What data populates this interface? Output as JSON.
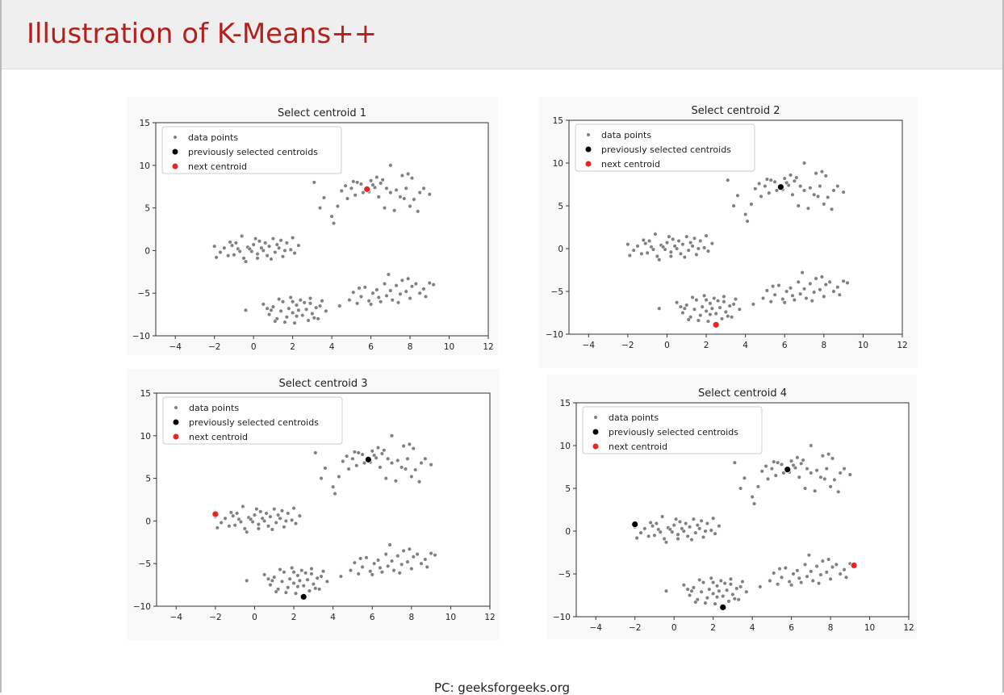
{
  "slide": {
    "title": "Illustration of K-Means++",
    "footer": "PC: geeksforgeeks.org"
  },
  "colors": {
    "title": "#b2211e",
    "data_points": "#808080",
    "previous_centroids": "#000000",
    "next_centroid": "#e8251f"
  },
  "chart_data": [
    {
      "type": "scatter",
      "title": "Select centroid 1",
      "xlim": [
        -5,
        12
      ],
      "ylim": [
        -10,
        15
      ],
      "xticks": [
        -4,
        -2,
        0,
        2,
        4,
        6,
        8,
        10,
        12
      ],
      "yticks": [
        -10,
        -5,
        0,
        5,
        10,
        15
      ],
      "legend": {
        "location": "upper-left",
        "entries": [
          "data points",
          "previously selected centroids",
          "next centroid"
        ]
      },
      "previous_centroids": [],
      "next_centroid": [
        5.8,
        7.2
      ]
    },
    {
      "type": "scatter",
      "title": "Select centroid 2",
      "xlim": [
        -5,
        12
      ],
      "ylim": [
        -10,
        15
      ],
      "xticks": [
        -4,
        -2,
        0,
        2,
        4,
        6,
        8,
        10,
        12
      ],
      "yticks": [
        -10,
        -5,
        0,
        5,
        10,
        15
      ],
      "legend": {
        "location": "upper-left",
        "entries": [
          "data points",
          "previously selected centroids",
          "next centroid"
        ]
      },
      "previous_centroids": [
        [
          5.8,
          7.2
        ]
      ],
      "next_centroid": [
        2.5,
        -8.9
      ]
    },
    {
      "type": "scatter",
      "title": "Select centroid 3",
      "xlim": [
        -5,
        12
      ],
      "ylim": [
        -10,
        15
      ],
      "xticks": [
        -4,
        -2,
        0,
        2,
        4,
        6,
        8,
        10,
        12
      ],
      "yticks": [
        -10,
        -5,
        0,
        5,
        10,
        15
      ],
      "legend": {
        "location": "upper-left",
        "entries": [
          "data points",
          "previously selected centroids",
          "next centroid"
        ]
      },
      "previous_centroids": [
        [
          5.8,
          7.2
        ],
        [
          2.5,
          -8.9
        ]
      ],
      "next_centroid": [
        -2.0,
        0.8
      ]
    },
    {
      "type": "scatter",
      "title": "Select centroid 4",
      "xlim": [
        -5,
        12
      ],
      "ylim": [
        -10,
        15
      ],
      "xticks": [
        -4,
        -2,
        0,
        2,
        4,
        6,
        8,
        10,
        12
      ],
      "yticks": [
        -10,
        -5,
        0,
        5,
        10,
        15
      ],
      "legend": {
        "location": "upper-left",
        "entries": [
          "data points",
          "previously selected centroids",
          "next centroid"
        ]
      },
      "previous_centroids": [
        [
          5.8,
          7.2
        ],
        [
          2.5,
          -8.9
        ],
        [
          -2.0,
          0.8
        ]
      ],
      "next_centroid": [
        9.2,
        -4.0
      ]
    }
  ],
  "data_points": [
    [
      -2.0,
      0.5
    ],
    [
      -1.7,
      -0.2
    ],
    [
      -1.5,
      0.3
    ],
    [
      -1.2,
      1.0
    ],
    [
      -1.0,
      -0.5
    ],
    [
      -0.8,
      0.2
    ],
    [
      -0.6,
      1.7
    ],
    [
      -0.5,
      -0.9
    ],
    [
      -0.3,
      0.4
    ],
    [
      -0.1,
      -0.1
    ],
    [
      0.0,
      0.7
    ],
    [
      0.2,
      -0.4
    ],
    [
      0.3,
      1.1
    ],
    [
      0.5,
      0.0
    ],
    [
      0.7,
      -0.6
    ],
    [
      0.8,
      0.5
    ],
    [
      1.0,
      1.4
    ],
    [
      1.1,
      -0.2
    ],
    [
      1.3,
      0.3
    ],
    [
      1.5,
      -0.7
    ],
    [
      1.7,
      0.9
    ],
    [
      1.9,
      0.1
    ],
    [
      2.1,
      -0.3
    ],
    [
      2.3,
      0.6
    ],
    [
      -1.9,
      -0.8
    ],
    [
      -1.3,
      -0.6
    ],
    [
      -0.9,
      0.9
    ],
    [
      -0.4,
      -1.3
    ],
    [
      0.1,
      1.4
    ],
    [
      0.4,
      0.3
    ],
    [
      0.9,
      -1.0
    ],
    [
      1.4,
      1.2
    ],
    [
      -0.7,
      -0.1
    ],
    [
      0.6,
      0.9
    ],
    [
      1.2,
      0.7
    ],
    [
      2.0,
      1.5
    ],
    [
      -1.1,
      0.6
    ],
    [
      0.2,
      -0.9
    ],
    [
      -0.2,
      0.2
    ],
    [
      1.6,
      0.0
    ],
    [
      -0.4,
      -7.0
    ],
    [
      0.5,
      -6.3
    ],
    [
      0.8,
      -7.5
    ],
    [
      1.0,
      -6.6
    ],
    [
      1.2,
      -8.0
    ],
    [
      1.4,
      -7.1
    ],
    [
      1.5,
      -6.0
    ],
    [
      1.7,
      -7.8
    ],
    [
      1.8,
      -6.8
    ],
    [
      2.0,
      -7.3
    ],
    [
      2.1,
      -8.5
    ],
    [
      2.2,
      -6.4
    ],
    [
      2.3,
      -7.0
    ],
    [
      2.4,
      -5.8
    ],
    [
      2.5,
      -7.6
    ],
    [
      2.7,
      -6.9
    ],
    [
      2.8,
      -8.2
    ],
    [
      2.9,
      -6.2
    ],
    [
      3.0,
      -7.4
    ],
    [
      3.2,
      -6.7
    ],
    [
      3.3,
      -8.0
    ],
    [
      3.5,
      -5.9
    ],
    [
      3.7,
      -7.1
    ],
    [
      1.9,
      -5.5
    ],
    [
      0.9,
      -7.0
    ],
    [
      1.3,
      -5.7
    ],
    [
      2.6,
      -6.1
    ],
    [
      3.1,
      -7.9
    ],
    [
      1.6,
      -8.4
    ],
    [
      2.2,
      -7.7
    ],
    [
      0.7,
      -6.8
    ],
    [
      3.4,
      -6.5
    ],
    [
      2.0,
      -6.0
    ],
    [
      1.1,
      -8.3
    ],
    [
      2.9,
      -5.6
    ],
    [
      4.4,
      -6.5
    ],
    [
      4.9,
      -5.8
    ],
    [
      5.1,
      -4.9
    ],
    [
      5.3,
      -6.2
    ],
    [
      5.5,
      -5.4
    ],
    [
      5.7,
      -4.3
    ],
    [
      5.9,
      -5.9
    ],
    [
      6.1,
      -5.0
    ],
    [
      6.3,
      -4.6
    ],
    [
      6.5,
      -6.0
    ],
    [
      6.7,
      -3.9
    ],
    [
      6.8,
      -5.3
    ],
    [
      7.0,
      -4.7
    ],
    [
      7.1,
      -5.8
    ],
    [
      7.3,
      -4.1
    ],
    [
      7.5,
      -5.1
    ],
    [
      7.6,
      -3.5
    ],
    [
      7.8,
      -4.8
    ],
    [
      8.0,
      -5.6
    ],
    [
      8.1,
      -4.2
    ],
    [
      8.3,
      -3.9
    ],
    [
      8.5,
      -5.0
    ],
    [
      8.7,
      -4.5
    ],
    [
      9.0,
      -3.8
    ],
    [
      9.2,
      -4.0
    ],
    [
      6.0,
      -6.3
    ],
    [
      6.9,
      -2.8
    ],
    [
      7.4,
      -6.1
    ],
    [
      5.4,
      -4.4
    ],
    [
      8.8,
      -5.4
    ],
    [
      6.4,
      -5.5
    ],
    [
      7.9,
      -3.3
    ],
    [
      3.1,
      8.0
    ],
    [
      3.4,
      5.0
    ],
    [
      3.6,
      6.2
    ],
    [
      4.0,
      4.0
    ],
    [
      4.1,
      3.2
    ],
    [
      4.3,
      5.2
    ],
    [
      4.5,
      7.0
    ],
    [
      4.7,
      7.6
    ],
    [
      4.8,
      6.1
    ],
    [
      5.0,
      7.3
    ],
    [
      5.2,
      6.5
    ],
    [
      5.3,
      8.0
    ],
    [
      5.5,
      7.8
    ],
    [
      5.6,
      6.8
    ],
    [
      5.8,
      7.2
    ],
    [
      6.0,
      8.2
    ],
    [
      6.2,
      7.4
    ],
    [
      6.4,
      6.3
    ],
    [
      6.5,
      7.9
    ],
    [
      6.7,
      5.0
    ],
    [
      6.8,
      7.3
    ],
    [
      7.0,
      6.8
    ],
    [
      7.2,
      4.7
    ],
    [
      7.3,
      7.1
    ],
    [
      7.5,
      6.3
    ],
    [
      7.6,
      8.8
    ],
    [
      7.8,
      7.3
    ],
    [
      8.0,
      5.2
    ],
    [
      8.2,
      6.0
    ],
    [
      8.4,
      4.6
    ],
    [
      8.5,
      6.8
    ],
    [
      8.7,
      7.3
    ],
    [
      9.0,
      6.6
    ],
    [
      7.9,
      9.0
    ],
    [
      7.0,
      10.0
    ],
    [
      6.3,
      8.6
    ],
    [
      5.9,
      6.9
    ],
    [
      7.7,
      6.1
    ],
    [
      8.1,
      8.5
    ],
    [
      5.1,
      8.1
    ],
    [
      6.6,
      8.3
    ],
    [
      6.1,
      7.7
    ]
  ]
}
